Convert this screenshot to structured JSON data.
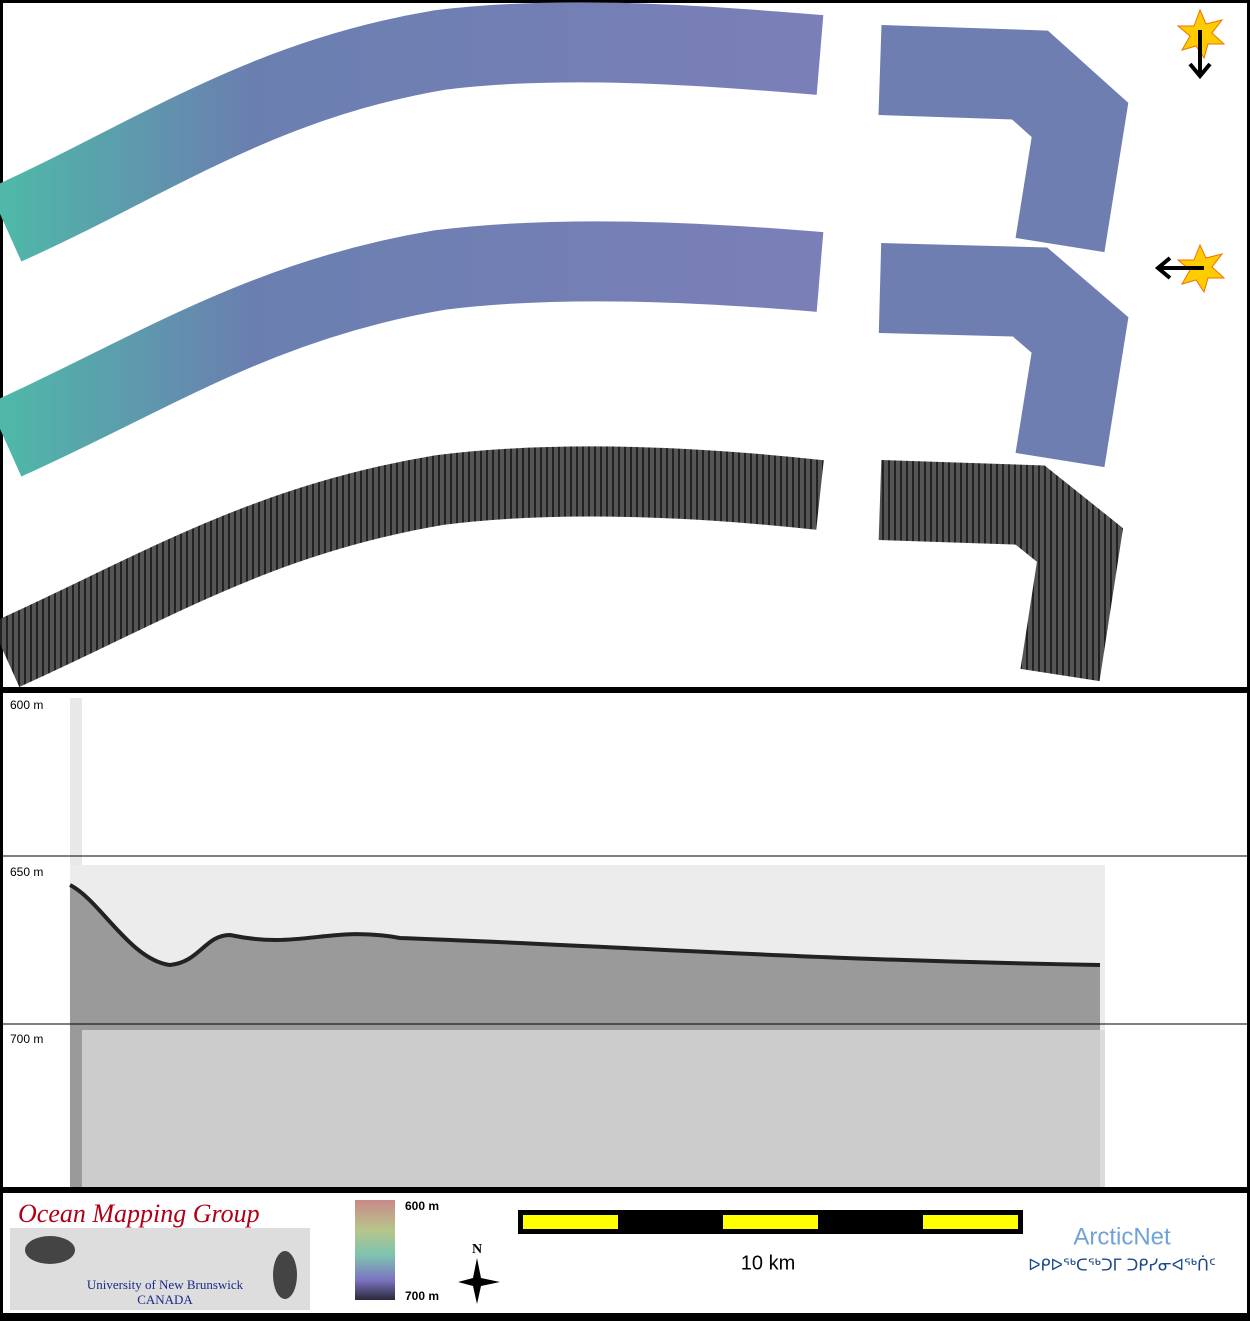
{
  "profile": {
    "depth_labels": [
      "600 m",
      "650 m",
      "700 m"
    ]
  },
  "footer": {
    "logo": {
      "title": "Ocean Mapping Group",
      "university": "University of New Brunswick",
      "country": "CANADA"
    },
    "color_bar": {
      "top_label": "600 m",
      "bottom_label": "700 m"
    },
    "north": "N",
    "scale_bar": {
      "label": "10 km"
    },
    "partner": {
      "name": "ArcticNet",
      "syllabics": "ᐅᑭᐅᖅᑕᖅᑐᒥ ᑐᑭᓯᓂᐊᖅᑏᑦ"
    }
  }
}
